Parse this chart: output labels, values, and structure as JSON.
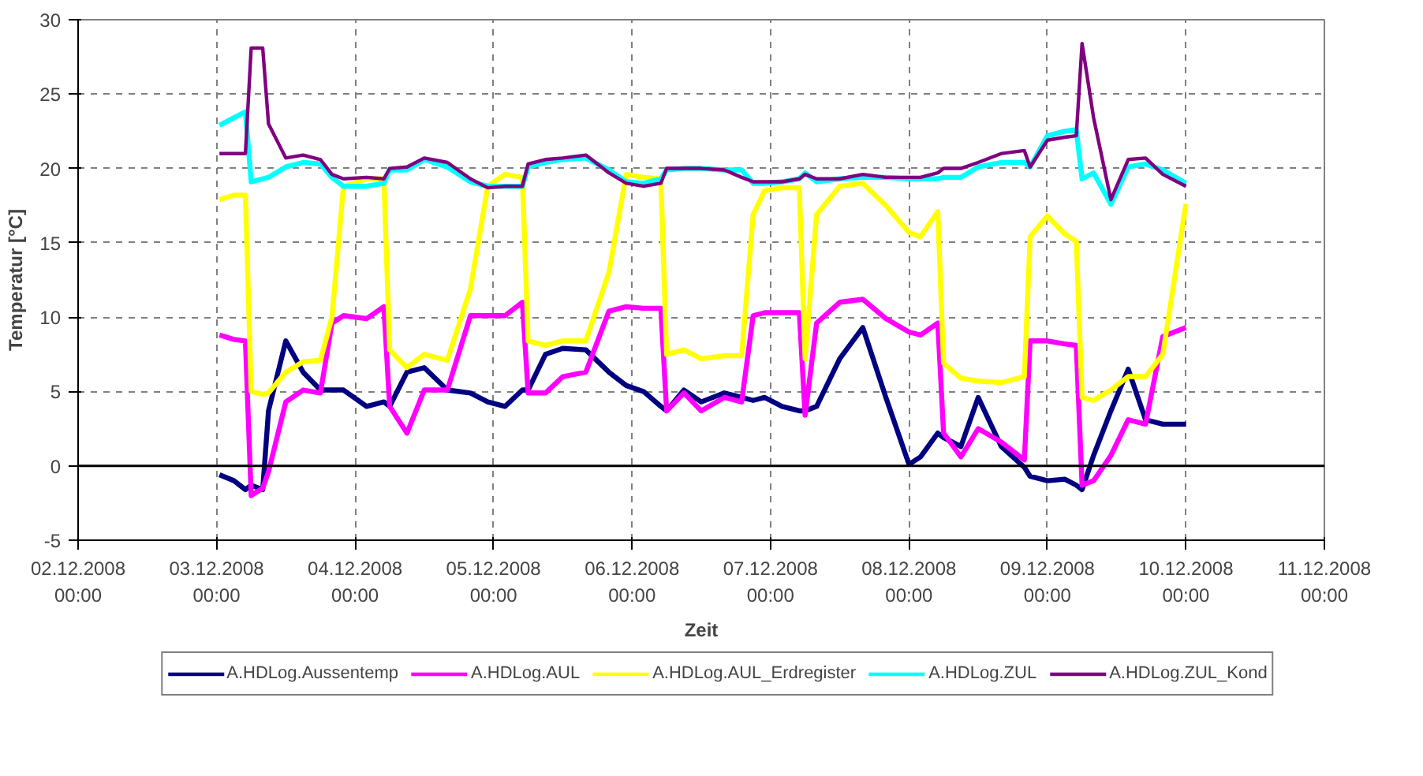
{
  "chart_data": {
    "type": "line",
    "xlabel": "Zeit",
    "ylabel": "Temperatur [°C]",
    "x": [
      "2008-12-03T00:30",
      "2008-12-03T03:00",
      "2008-12-03T05:00",
      "2008-12-03T06:00",
      "2008-12-03T08:00",
      "2008-12-03T09:00",
      "2008-12-03T12:00",
      "2008-12-03T15:00",
      "2008-12-03T18:00",
      "2008-12-03T20:00",
      "2008-12-03T22:00",
      "2008-12-04T02:00",
      "2008-12-04T05:00",
      "2008-12-04T06:00",
      "2008-12-04T09:00",
      "2008-12-04T12:00",
      "2008-12-04T16:00",
      "2008-12-04T20:00",
      "2008-12-04T23:00",
      "2008-12-05T02:00",
      "2008-12-05T05:00",
      "2008-12-05T06:00",
      "2008-12-05T09:00",
      "2008-12-05T12:00",
      "2008-12-05T16:00",
      "2008-12-05T20:00",
      "2008-12-05T23:00",
      "2008-12-06T02:00",
      "2008-12-06T05:00",
      "2008-12-06T06:00",
      "2008-12-06T09:00",
      "2008-12-06T12:00",
      "2008-12-06T16:00",
      "2008-12-06T19:00",
      "2008-12-06T21:00",
      "2008-12-06T23:00",
      "2008-12-07T02:00",
      "2008-12-07T05:00",
      "2008-12-07T06:00",
      "2008-12-07T08:00",
      "2008-12-07T12:00",
      "2008-12-07T16:00",
      "2008-12-07T20:00",
      "2008-12-08T00:00",
      "2008-12-08T02:00",
      "2008-12-08T05:00",
      "2008-12-08T06:00",
      "2008-12-08T09:00",
      "2008-12-08T12:00",
      "2008-12-08T16:00",
      "2008-12-08T20:00",
      "2008-12-08T21:00",
      "2008-12-09T00:00",
      "2008-12-09T03:00",
      "2008-12-09T05:00",
      "2008-12-09T06:00",
      "2008-12-09T08:00",
      "2008-12-09T11:00",
      "2008-12-09T14:00",
      "2008-12-09T17:00",
      "2008-12-09T20:00",
      "2008-12-10T00:00"
    ],
    "series": [
      {
        "name": "A.HDLog.Aussentemp",
        "color": "#000080",
        "values": [
          -0.6,
          -1.0,
          -1.6,
          -1.3,
          -1.6,
          3.7,
          8.4,
          6.3,
          5.1,
          5.1,
          5.1,
          4.0,
          4.3,
          4.0,
          6.3,
          6.6,
          5.1,
          4.9,
          4.3,
          4.0,
          5.1,
          5.1,
          7.5,
          7.9,
          7.8,
          6.3,
          5.4,
          5.0,
          4.0,
          3.7,
          5.1,
          4.3,
          4.9,
          4.6,
          4.4,
          4.6,
          4.0,
          3.7,
          3.7,
          4.0,
          7.2,
          9.3,
          4.6,
          0.1,
          0.6,
          2.2,
          1.9,
          1.3,
          4.6,
          1.3,
          -0.1,
          -0.7,
          -1.0,
          -0.9,
          -1.3,
          -1.6,
          0.7,
          3.7,
          6.5,
          3.1,
          2.8,
          2.8
        ]
      },
      {
        "name": "A.HDLog.AUL",
        "color": "#ff00ff",
        "values": [
          8.8,
          8.5,
          8.4,
          -2.0,
          -1.5,
          -0.4,
          4.3,
          5.1,
          4.9,
          9.6,
          10.1,
          9.9,
          10.7,
          4.0,
          2.2,
          5.1,
          5.1,
          10.1,
          10.1,
          10.1,
          11.0,
          4.9,
          4.9,
          6.0,
          6.3,
          10.4,
          10.7,
          10.6,
          10.6,
          3.7,
          4.9,
          3.7,
          4.6,
          4.3,
          10.1,
          10.3,
          10.3,
          10.3,
          3.4,
          9.6,
          11.0,
          11.2,
          9.9,
          9.0,
          8.8,
          9.6,
          2.2,
          0.6,
          2.5,
          1.6,
          0.4,
          8.4,
          8.4,
          8.2,
          8.1,
          -1.3,
          -1.0,
          0.7,
          3.1,
          2.8,
          8.7,
          9.3
        ]
      },
      {
        "name": "A.HDLog.AUL_Erdregister",
        "color": "#ffff00",
        "values": [
          17.9,
          18.2,
          18.2,
          5.0,
          4.8,
          4.9,
          6.3,
          7.0,
          7.1,
          10,
          18.8,
          19.3,
          19.3,
          7.8,
          6.6,
          7.5,
          7.1,
          11.9,
          18.8,
          19.6,
          19.4,
          8.4,
          8.1,
          8.4,
          8.4,
          13,
          19.6,
          19.4,
          19.3,
          7.5,
          7.8,
          7.2,
          7.4,
          7.4,
          16.9,
          18.5,
          18.7,
          18.7,
          7.2,
          16.9,
          18.8,
          19.0,
          17.5,
          15.7,
          15.4,
          17.1,
          6.9,
          5.9,
          5.7,
          5.6,
          6.0,
          15.4,
          16.8,
          15.6,
          15.1,
          4.6,
          4.4,
          5.1,
          6.0,
          6.0,
          7.5,
          17.6
        ]
      },
      {
        "name": "A.HDLog.ZUL",
        "color": "#00ffff",
        "values": [
          22.9,
          23.4,
          23.8,
          19.1,
          19.3,
          19.4,
          20.1,
          20.4,
          20.3,
          19.4,
          18.8,
          18.8,
          19.0,
          19.9,
          19.9,
          20.6,
          20.1,
          19.1,
          18.8,
          18.8,
          18.8,
          20.1,
          20.4,
          20.6,
          20.7,
          19.9,
          19.1,
          19.0,
          19.3,
          19.9,
          20.0,
          20.0,
          19.9,
          19.9,
          19.0,
          19.0,
          19.1,
          19.3,
          19.7,
          19.1,
          19.3,
          19.4,
          19.4,
          19.3,
          19.3,
          19.3,
          19.4,
          19.4,
          20.1,
          20.4,
          20.4,
          20.1,
          22.2,
          22.5,
          22.6,
          19.3,
          19.7,
          17.6,
          20.1,
          20.3,
          19.9,
          19.0
        ]
      },
      {
        "name": "A.HDLog.ZUL_Kond",
        "color": "#800080",
        "values": [
          21.0,
          21.0,
          21.0,
          28.1,
          28.1,
          23.0,
          20.7,
          20.9,
          20.6,
          19.6,
          19.3,
          19.4,
          19.3,
          20.0,
          20.1,
          20.7,
          20.4,
          19.3,
          18.7,
          18.8,
          18.8,
          20.3,
          20.6,
          20.7,
          20.9,
          19.7,
          19.0,
          18.8,
          19.0,
          20.0,
          20.0,
          20.0,
          19.9,
          19.4,
          19.1,
          19.1,
          19.1,
          19.3,
          19.6,
          19.3,
          19.3,
          19.6,
          19.4,
          19.4,
          19.4,
          19.7,
          20.0,
          20.0,
          20.4,
          21.0,
          21.2,
          20.1,
          21.9,
          22.1,
          22.2,
          28.4,
          23.4,
          17.9,
          20.6,
          20.7,
          19.6,
          18.8
        ]
      }
    ],
    "xlim": [
      "2008-12-02",
      "2008-12-11"
    ],
    "xticks": [
      {
        "value": "2008-12-02",
        "label": "02.12.2008\n00:00"
      },
      {
        "value": "2008-12-03",
        "label": "03.12.2008\n00:00"
      },
      {
        "value": "2008-12-04",
        "label": "04.12.2008\n00:00"
      },
      {
        "value": "2008-12-05",
        "label": "05.12.2008\n00:00"
      },
      {
        "value": "2008-12-06",
        "label": "06.12.2008\n00:00"
      },
      {
        "value": "2008-12-07",
        "label": "07.12.2008\n00:00"
      },
      {
        "value": "2008-12-08",
        "label": "08.12.2008\n00:00"
      },
      {
        "value": "2008-12-09",
        "label": "09.12.2008\n00:00"
      },
      {
        "value": "2008-12-10",
        "label": "10.12.2008\n00:00"
      },
      {
        "value": "2008-12-11",
        "label": "11.12.2008\n00:00"
      }
    ],
    "ylim": [
      -5,
      30
    ],
    "yticks": [
      -5,
      0,
      5,
      10,
      15,
      20,
      25,
      30
    ],
    "ref_lines": [
      {
        "axis": "y",
        "value": 0,
        "label": null,
        "color": "#000000"
      }
    ],
    "grid": true,
    "legend": "bottom",
    "marker": "none",
    "line_style": "solid"
  }
}
